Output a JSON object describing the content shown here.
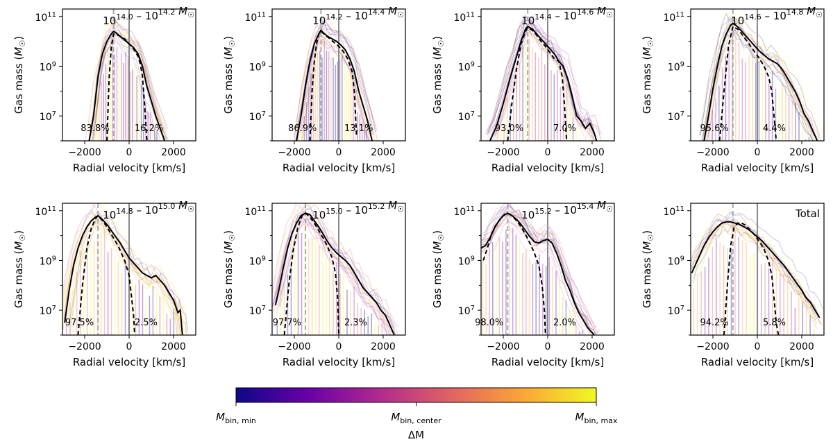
{
  "figure": {
    "y_axis_label": "Gas mass (M☉)",
    "x_axis_label": "Radial velocity [km/s]",
    "y_ticks": [
      "10^7",
      "10^9",
      "10^11"
    ],
    "x_ticks": [
      "−2000",
      "0",
      "2000"
    ],
    "legend_lines": {
      "solid": "total gas mass distribution",
      "dashed": "main component",
      "grey_dashed_vertical": "peak velocity",
      "grey_solid_vertical": "zero velocity"
    }
  },
  "colorbar": {
    "label": "ΔM",
    "ticks": [
      "M_bin,min",
      "M_bin,center",
      "M_bin,max"
    ],
    "colors": [
      "#0d0887",
      "#6a00a8",
      "#b12a90",
      "#e16462",
      "#fca636",
      "#f0f921"
    ]
  },
  "chart_data": [
    {
      "type": "line",
      "title": "10^14.0 – 10^14.2 M☉",
      "xlim": [
        -3000,
        3000
      ],
      "ylim_log10": [
        6.0,
        11.3
      ],
      "peak_velocity": -700,
      "infall_percent": "83.8%",
      "outflow_percent": "16.2%",
      "series": [
        {
          "name": "total",
          "x": [
            -1800,
            -1600,
            -1400,
            -1200,
            -1000,
            -800,
            -700,
            -600,
            -400,
            -200,
            0,
            200,
            400,
            600,
            800,
            1000,
            1200,
            1400,
            1600
          ],
          "log10_y": [
            6.0,
            7.0,
            8.6,
            9.5,
            10.0,
            10.3,
            10.4,
            10.35,
            10.2,
            10.05,
            9.9,
            9.75,
            9.5,
            9.0,
            8.2,
            7.6,
            7.0,
            6.5,
            6.0
          ]
        },
        {
          "name": "main",
          "x": [
            -1000,
            -900,
            -800,
            -700,
            -600,
            -400,
            -200,
            0,
            200,
            400,
            500,
            600,
            700,
            800
          ],
          "log10_y": [
            6.0,
            8.5,
            9.8,
            10.3,
            10.3,
            10.2,
            10.1,
            9.9,
            9.7,
            9.4,
            9.1,
            8.6,
            7.4,
            6.0
          ]
        }
      ]
    },
    {
      "type": "line",
      "title": "10^14.2 – 10^14.4 M☉",
      "xlim": [
        -3000,
        3000
      ],
      "ylim_log10": [
        6.0,
        11.3
      ],
      "peak_velocity": -800,
      "infall_percent": "86.9%",
      "outflow_percent": "13.1%",
      "series": [
        {
          "name": "total",
          "x": [
            -1900,
            -1700,
            -1500,
            -1300,
            -1100,
            -900,
            -800,
            -700,
            -500,
            -300,
            -100,
            100,
            300,
            500,
            700,
            900,
            1100,
            1300,
            1500
          ],
          "log10_y": [
            6.0,
            7.0,
            8.2,
            9.2,
            9.9,
            10.3,
            10.45,
            10.35,
            10.2,
            10.1,
            10.0,
            9.85,
            9.65,
            9.3,
            8.8,
            8.0,
            7.4,
            6.8,
            6.0
          ]
        },
        {
          "name": "main",
          "x": [
            -1300,
            -1200,
            -1100,
            -1000,
            -900,
            -800,
            -600,
            -400,
            -200,
            0,
            200,
            400,
            600,
            700,
            800
          ],
          "log10_y": [
            6.0,
            8.0,
            9.2,
            9.9,
            10.3,
            10.4,
            10.25,
            10.1,
            9.95,
            9.8,
            9.6,
            9.3,
            8.8,
            8.0,
            6.2
          ]
        }
      ]
    },
    {
      "type": "line",
      "title": "10^14.4 – 10^14.6 M☉",
      "xlim": [
        -3000,
        3000
      ],
      "ylim_log10": [
        6.0,
        11.3
      ],
      "peak_velocity": -900,
      "infall_percent": "93.0%",
      "outflow_percent": "7.0%",
      "series": [
        {
          "name": "total",
          "x": [
            -2600,
            -2300,
            -2000,
            -1700,
            -1400,
            -1200,
            -1000,
            -900,
            -700,
            -500,
            -300,
            -100,
            100,
            300,
            500,
            700,
            900,
            1100,
            1300,
            1500,
            1700,
            1900,
            2100,
            2200
          ],
          "log10_y": [
            6.0,
            6.6,
            7.5,
            8.5,
            9.4,
            10.0,
            10.5,
            10.6,
            10.5,
            10.3,
            10.1,
            9.9,
            9.7,
            9.5,
            9.2,
            9.0,
            8.5,
            7.8,
            7.0,
            6.8,
            6.5,
            6.7,
            6.3,
            6.0
          ]
        },
        {
          "name": "main",
          "x": [
            -1800,
            -1600,
            -1400,
            -1200,
            -1000,
            -900,
            -700,
            -500,
            -300,
            -100,
            100,
            300,
            500,
            650,
            750,
            850
          ],
          "log10_y": [
            6.0,
            7.6,
            8.9,
            9.9,
            10.4,
            10.55,
            10.45,
            10.25,
            10.0,
            9.8,
            9.55,
            9.3,
            9.2,
            8.6,
            7.5,
            6.0
          ]
        }
      ]
    },
    {
      "type": "line",
      "title": "10^14.6 – 10^14.8 M☉",
      "xlim": [
        -3000,
        3000
      ],
      "ylim_log10": [
        6.0,
        11.3
      ],
      "peak_velocity": -1100,
      "infall_percent": "95.6%",
      "outflow_percent": "4.4%",
      "series": [
        {
          "name": "total",
          "x": [
            -2400,
            -2200,
            -2000,
            -1800,
            -1600,
            -1400,
            -1200,
            -1100,
            -900,
            -700,
            -500,
            -300,
            -100,
            100,
            300,
            500,
            700,
            900,
            1100,
            1300,
            1500,
            1700,
            1900,
            2100,
            2300,
            2500,
            2700
          ],
          "log10_y": [
            6.0,
            7.0,
            8.1,
            9.0,
            9.8,
            10.3,
            10.65,
            10.72,
            10.6,
            10.4,
            10.2,
            10.0,
            9.8,
            9.6,
            9.45,
            9.3,
            9.2,
            9.1,
            8.9,
            8.6,
            8.3,
            8.0,
            7.6,
            7.1,
            6.8,
            6.4,
            6.0
          ]
        },
        {
          "name": "main",
          "x": [
            -1700,
            -1500,
            -1300,
            -1100,
            -900,
            -700,
            -500,
            -300,
            -100,
            100,
            300,
            500,
            650,
            750,
            850
          ],
          "log10_y": [
            6.0,
            8.0,
            9.8,
            10.6,
            10.5,
            10.3,
            10.05,
            9.8,
            9.55,
            9.3,
            9.0,
            8.6,
            8.0,
            7.0,
            6.0
          ]
        }
      ]
    },
    {
      "type": "line",
      "title": "10^14.8 – 10^15.0 M☉",
      "xlim": [
        -3000,
        3000
      ],
      "ylim_log10": [
        6.0,
        11.3
      ],
      "peak_velocity": -1400,
      "infall_percent": "97.5%",
      "outflow_percent": "2.5%",
      "series": [
        {
          "name": "total",
          "x": [
            -2900,
            -2700,
            -2500,
            -2300,
            -2100,
            -1900,
            -1700,
            -1500,
            -1400,
            -1200,
            -1000,
            -800,
            -600,
            -400,
            -200,
            0,
            200,
            400,
            600,
            800,
            1000,
            1200,
            1400,
            1600,
            1800,
            2000,
            2200,
            2300,
            2400
          ],
          "log10_y": [
            6.5,
            7.8,
            8.8,
            9.5,
            10.0,
            10.35,
            10.6,
            10.75,
            10.8,
            10.65,
            10.45,
            10.2,
            9.95,
            9.7,
            9.4,
            9.1,
            8.9,
            8.7,
            8.5,
            8.4,
            8.3,
            8.4,
            8.2,
            8.0,
            7.7,
            7.4,
            6.9,
            7.0,
            6.0
          ]
        },
        {
          "name": "main",
          "x": [
            -2300,
            -2100,
            -1900,
            -1700,
            -1500,
            -1400,
            -1200,
            -1000,
            -800,
            -600,
            -400,
            -200,
            0,
            100,
            200,
            250
          ],
          "log10_y": [
            6.0,
            8.0,
            9.5,
            10.3,
            10.7,
            10.8,
            10.6,
            10.35,
            10.05,
            9.75,
            9.4,
            9.0,
            8.4,
            7.6,
            6.8,
            6.0
          ]
        }
      ]
    },
    {
      "type": "line",
      "title": "10^15.0 – 10^15.2 M☉",
      "xlim": [
        -3000,
        3000
      ],
      "ylim_log10": [
        6.0,
        11.3
      ],
      "peak_velocity": -1500,
      "infall_percent": "97.7%",
      "outflow_percent": "2.3%",
      "series": [
        {
          "name": "total",
          "x": [
            -2850,
            -2700,
            -2500,
            -2300,
            -2100,
            -1900,
            -1700,
            -1500,
            -1300,
            -1100,
            -900,
            -700,
            -500,
            -300,
            -100,
            100,
            300,
            500,
            700,
            900,
            1100,
            1300,
            1500,
            1700,
            1900,
            2100,
            2300,
            2500
          ],
          "log10_y": [
            7.2,
            7.8,
            8.7,
            9.5,
            10.1,
            10.5,
            10.8,
            10.9,
            10.85,
            10.6,
            10.35,
            10.05,
            9.75,
            9.5,
            9.3,
            9.15,
            9.0,
            8.8,
            8.5,
            8.2,
            7.9,
            7.7,
            7.5,
            7.3,
            7.0,
            6.8,
            6.4,
            6.0
          ]
        },
        {
          "name": "main",
          "x": [
            -2450,
            -2250,
            -2050,
            -1850,
            -1650,
            -1500,
            -1300,
            -1100,
            -900,
            -700,
            -500,
            -300,
            -150,
            -50,
            0
          ],
          "log10_y": [
            6.0,
            8.0,
            9.4,
            10.3,
            10.8,
            10.9,
            10.75,
            10.5,
            10.2,
            9.9,
            9.55,
            9.1,
            8.5,
            7.5,
            6.0
          ]
        }
      ]
    },
    {
      "type": "line",
      "title": "10^15.2 – 10^15.4 M☉",
      "xlim": [
        -3000,
        3000
      ],
      "ylim_log10": [
        6.0,
        11.3
      ],
      "peak_velocity": -1800,
      "infall_percent": "98.0%",
      "outflow_percent": "2.0%",
      "series": [
        {
          "name": "total",
          "x": [
            -3000,
            -2800,
            -2600,
            -2400,
            -2200,
            -2000,
            -1800,
            -1600,
            -1400,
            -1200,
            -1000,
            -800,
            -600,
            -400,
            -200,
            0,
            200,
            400,
            600,
            800,
            1000,
            1200,
            1400,
            1600,
            1800,
            2000,
            2100
          ],
          "log10_y": [
            9.5,
            9.6,
            9.9,
            10.3,
            10.6,
            10.8,
            10.9,
            10.8,
            10.65,
            10.45,
            10.2,
            9.95,
            9.75,
            9.7,
            9.8,
            9.85,
            9.7,
            9.3,
            8.8,
            8.2,
            7.8,
            7.3,
            6.9,
            6.6,
            6.3,
            6.1,
            6.0
          ]
        },
        {
          "name": "main",
          "x": [
            -2900,
            -2750,
            -2550,
            -2350,
            -2150,
            -1950,
            -1800,
            -1600,
            -1400,
            -1200,
            -1000,
            -800,
            -600,
            -400,
            -250,
            -150,
            -100
          ],
          "log10_y": [
            9.0,
            9.4,
            10.0,
            10.4,
            10.65,
            10.85,
            10.9,
            10.8,
            10.6,
            10.35,
            10.05,
            9.7,
            9.3,
            8.8,
            8.0,
            7.0,
            6.0
          ]
        }
      ]
    },
    {
      "type": "line",
      "title": "Total",
      "xlim": [
        -3000,
        3000
      ],
      "ylim_log10": [
        6.0,
        11.3
      ],
      "peak_velocity": -1100,
      "infall_percent": "94.2%",
      "outflow_percent": "5.8%",
      "series": [
        {
          "name": "total",
          "x": [
            -2950,
            -2800,
            -2600,
            -2400,
            -2200,
            -2000,
            -1800,
            -1600,
            -1400,
            -1200,
            -1000,
            -800,
            -600,
            -400,
            -200,
            0,
            200,
            400,
            600,
            800,
            1000,
            1200,
            1400,
            1600,
            1800,
            2000,
            2200,
            2400,
            2600,
            2800
          ],
          "log10_y": [
            8.5,
            8.8,
            9.2,
            9.6,
            9.9,
            10.15,
            10.35,
            10.5,
            10.55,
            10.55,
            10.5,
            10.45,
            10.35,
            10.25,
            10.1,
            9.95,
            9.8,
            9.6,
            9.4,
            9.2,
            9.0,
            8.8,
            8.55,
            8.3,
            8.05,
            7.8,
            7.5,
            7.3,
            7.0,
            6.7
          ]
        },
        {
          "name": "main",
          "x": [
            -1500,
            -1350,
            -1200,
            -1050,
            -900,
            -700,
            -500,
            -300,
            -100,
            100,
            300,
            500,
            650,
            750,
            850,
            950
          ],
          "log10_y": [
            6.0,
            8.0,
            9.6,
            10.3,
            10.5,
            10.5,
            10.4,
            10.2,
            10.0,
            9.75,
            9.45,
            9.0,
            8.4,
            7.5,
            6.5,
            6.0
          ]
        }
      ]
    }
  ]
}
